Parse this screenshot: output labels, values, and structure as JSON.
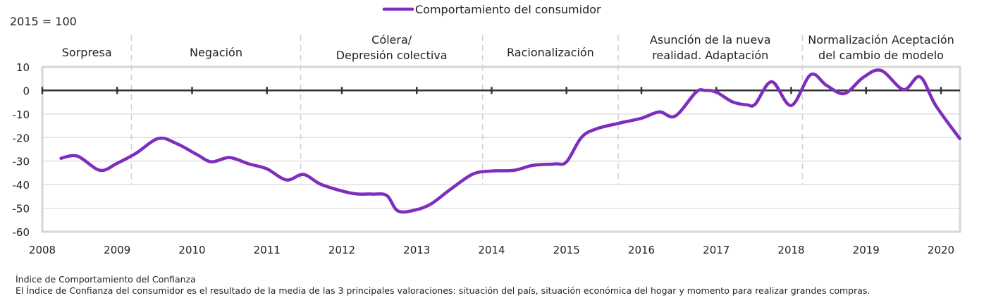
{
  "chart_data": {
    "type": "line",
    "unit_note": "2015 = 100",
    "legend": {
      "position": "top-center"
    },
    "series": [
      {
        "name": "Comportamiento del consumidor",
        "color": "#7e2dbd",
        "points": [
          [
            2008.25,
            -28.8
          ],
          [
            2008.47,
            -27.9
          ],
          [
            2008.77,
            -33.9
          ],
          [
            2009.0,
            -30.9
          ],
          [
            2009.25,
            -26.7
          ],
          [
            2009.55,
            -20.4
          ],
          [
            2009.79,
            -22.5
          ],
          [
            2010.07,
            -27.3
          ],
          [
            2010.26,
            -30.3
          ],
          [
            2010.5,
            -28.5
          ],
          [
            2010.76,
            -31.2
          ],
          [
            2011.0,
            -33.3
          ],
          [
            2011.26,
            -38.0
          ],
          [
            2011.49,
            -35.7
          ],
          [
            2011.73,
            -40.0
          ],
          [
            2012.14,
            -43.7
          ],
          [
            2012.4,
            -44.0
          ],
          [
            2012.6,
            -44.6
          ],
          [
            2012.75,
            -51.2
          ],
          [
            2013.0,
            -50.6
          ],
          [
            2013.2,
            -48.0
          ],
          [
            2013.45,
            -42.0
          ],
          [
            2013.75,
            -35.5
          ],
          [
            2014.0,
            -34.2
          ],
          [
            2014.3,
            -33.9
          ],
          [
            2014.55,
            -31.8
          ],
          [
            2014.85,
            -31.2
          ],
          [
            2015.0,
            -30.3
          ],
          [
            2015.2,
            -19.9
          ],
          [
            2015.4,
            -16.3
          ],
          [
            2015.7,
            -13.9
          ],
          [
            2016.0,
            -11.8
          ],
          [
            2016.24,
            -9.1
          ],
          [
            2016.45,
            -10.9
          ],
          [
            2016.73,
            -0.7
          ],
          [
            2016.85,
            0.0
          ],
          [
            2017.0,
            -0.7
          ],
          [
            2017.22,
            -4.9
          ],
          [
            2017.41,
            -6.1
          ],
          [
            2017.52,
            -5.8
          ],
          [
            2017.74,
            3.7
          ],
          [
            2018.0,
            -6.4
          ],
          [
            2018.26,
            6.7
          ],
          [
            2018.47,
            2.2
          ],
          [
            2018.71,
            -1.3
          ],
          [
            2018.96,
            5.5
          ],
          [
            2019.2,
            8.5
          ],
          [
            2019.5,
            0.4
          ],
          [
            2019.72,
            5.8
          ],
          [
            2019.93,
            -6.4
          ],
          [
            2020.25,
            -20.4
          ]
        ]
      }
    ],
    "xlim": [
      2008,
      2020.25
    ],
    "ylim": [
      -60,
      10
    ],
    "x_ticks": [
      "2008",
      "2009",
      "2010",
      "2011",
      "2012",
      "2013",
      "2014",
      "2015",
      "2016",
      "2017",
      "2018",
      "2019",
      "2020"
    ],
    "y_ticks": [
      "10",
      "0",
      "-10",
      "-20",
      "-30",
      "-40",
      "-50",
      "-60"
    ],
    "grid": true,
    "phases": [
      {
        "lines": [
          "Sorpresa"
        ],
        "start": 2008,
        "end": 2009.19
      },
      {
        "lines": [
          "Negación"
        ],
        "start": 2009.19,
        "end": 2011.45
      },
      {
        "lines": [
          "Cólera/",
          "Depresión colectiva"
        ],
        "start": 2011.45,
        "end": 2013.88
      },
      {
        "lines": [
          "Racionalización"
        ],
        "start": 2013.88,
        "end": 2015.69
      },
      {
        "lines": [
          "Asunción de la nueva",
          "realidad. Adaptación"
        ],
        "start": 2015.69,
        "end": 2018.15
      },
      {
        "lines": [
          "Normalización Aceptación",
          "del cambio de modelo"
        ],
        "start": 2018.15,
        "end": 2020.25
      }
    ]
  },
  "footer": {
    "title": "Índice de Comportamiento del Confianza",
    "note": "El Índice de Confianza del consumidor es el resultado de la media de las 3 principales valoraciones: situación del país, situación económica del hogar y momento para realizar grandes compras."
  }
}
